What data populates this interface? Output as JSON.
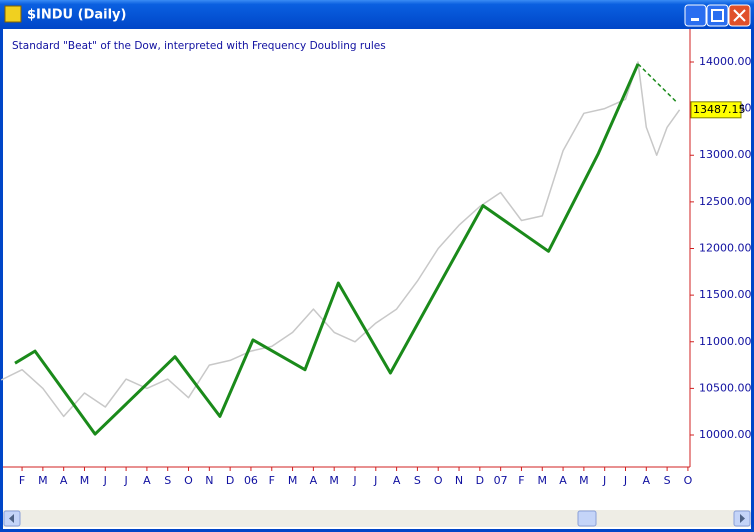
{
  "window": {
    "title": "$INDU (Daily)"
  },
  "chart_data": {
    "type": "line",
    "title": "Standard \"Beat\" of the Dow, interpreted with Frequency Doubling rules",
    "xlim": [
      -1.06,
      32.1
    ],
    "xticks": [
      {
        "value": 0,
        "label": "F"
      },
      {
        "value": 1,
        "label": "M"
      },
      {
        "value": 2,
        "label": "A"
      },
      {
        "value": 3,
        "label": "M"
      },
      {
        "value": 4,
        "label": "J"
      },
      {
        "value": 5,
        "label": "J"
      },
      {
        "value": 6,
        "label": "A"
      },
      {
        "value": 7,
        "label": "S"
      },
      {
        "value": 8,
        "label": "O"
      },
      {
        "value": 9,
        "label": "N"
      },
      {
        "value": 10,
        "label": "D"
      },
      {
        "value": 11,
        "label": "06"
      },
      {
        "value": 12,
        "label": "F"
      },
      {
        "value": 13,
        "label": "M"
      },
      {
        "value": 14,
        "label": "A"
      },
      {
        "value": 15,
        "label": "M"
      },
      {
        "value": 16,
        "label": "J"
      },
      {
        "value": 17,
        "label": "J"
      },
      {
        "value": 18,
        "label": "A"
      },
      {
        "value": 19,
        "label": "S"
      },
      {
        "value": 20,
        "label": "O"
      },
      {
        "value": 21,
        "label": "N"
      },
      {
        "value": 22,
        "label": "D"
      },
      {
        "value": 23,
        "label": "07"
      },
      {
        "value": 24,
        "label": "F"
      },
      {
        "value": 25,
        "label": "M"
      },
      {
        "value": 26,
        "label": "A"
      },
      {
        "value": 27,
        "label": "M"
      },
      {
        "value": 28,
        "label": "J"
      },
      {
        "value": 29,
        "label": "J"
      },
      {
        "value": 30,
        "label": "A"
      },
      {
        "value": 31,
        "label": "S"
      },
      {
        "value": 32,
        "label": "O"
      }
    ],
    "ylim": [
      9657,
      14343
    ],
    "yticks": [
      {
        "value": 10000,
        "label": "10000.00"
      },
      {
        "value": 10500,
        "label": "10500.00"
      },
      {
        "value": 11000,
        "label": "11000.00"
      },
      {
        "value": 11500,
        "label": "11500.00"
      },
      {
        "value": 12000,
        "label": "12000.00"
      },
      {
        "value": 12500,
        "label": "12500.00"
      },
      {
        "value": 13000,
        "label": "13000.00"
      },
      {
        "value": 13500,
        "label": "13500.00"
      },
      {
        "value": 14000,
        "label": "14000.00"
      }
    ],
    "last_price": 13487.15,
    "series": [
      {
        "color": "#c8c8c8",
        "style": "solid",
        "width": 1.5,
        "x": [
          -1,
          0,
          1,
          2,
          3,
          4,
          5,
          6,
          7,
          8,
          9,
          10,
          11,
          12,
          13,
          14,
          15,
          16,
          17,
          18,
          19,
          20,
          21,
          22,
          23,
          24,
          25,
          26,
          27,
          28,
          29,
          29.6,
          30,
          30.5,
          31,
          31.6
        ],
        "values": [
          10590,
          10700,
          10500,
          10200,
          10450,
          10300,
          10600,
          10500,
          10600,
          10400,
          10750,
          10800,
          10900,
          10950,
          11100,
          11350,
          11100,
          11000,
          11200,
          11350,
          11650,
          12000,
          12250,
          12450,
          12600,
          12300,
          12350,
          13050,
          13450,
          13500,
          13600,
          14000,
          13300,
          13000,
          13300,
          13487.15
        ]
      },
      {
        "color": "#1a8a1a",
        "style": "solid",
        "width": 3,
        "x": [
          -0.34,
          0.62,
          3.51,
          7.35,
          9.51,
          11.1,
          13.6,
          15.2,
          17.7,
          22.15,
          25.3,
          27.7,
          29.6
        ],
        "values": [
          10770,
          10900,
          10010,
          10840,
          10200,
          11020,
          10700,
          11630,
          10665,
          12460,
          11970,
          13020,
          13980
        ]
      },
      {
        "color": "#1a8a1a",
        "style": "dashed",
        "width": 1.5,
        "x": [
          29.6,
          31.5
        ],
        "values": [
          13980,
          13560
        ]
      }
    ]
  }
}
